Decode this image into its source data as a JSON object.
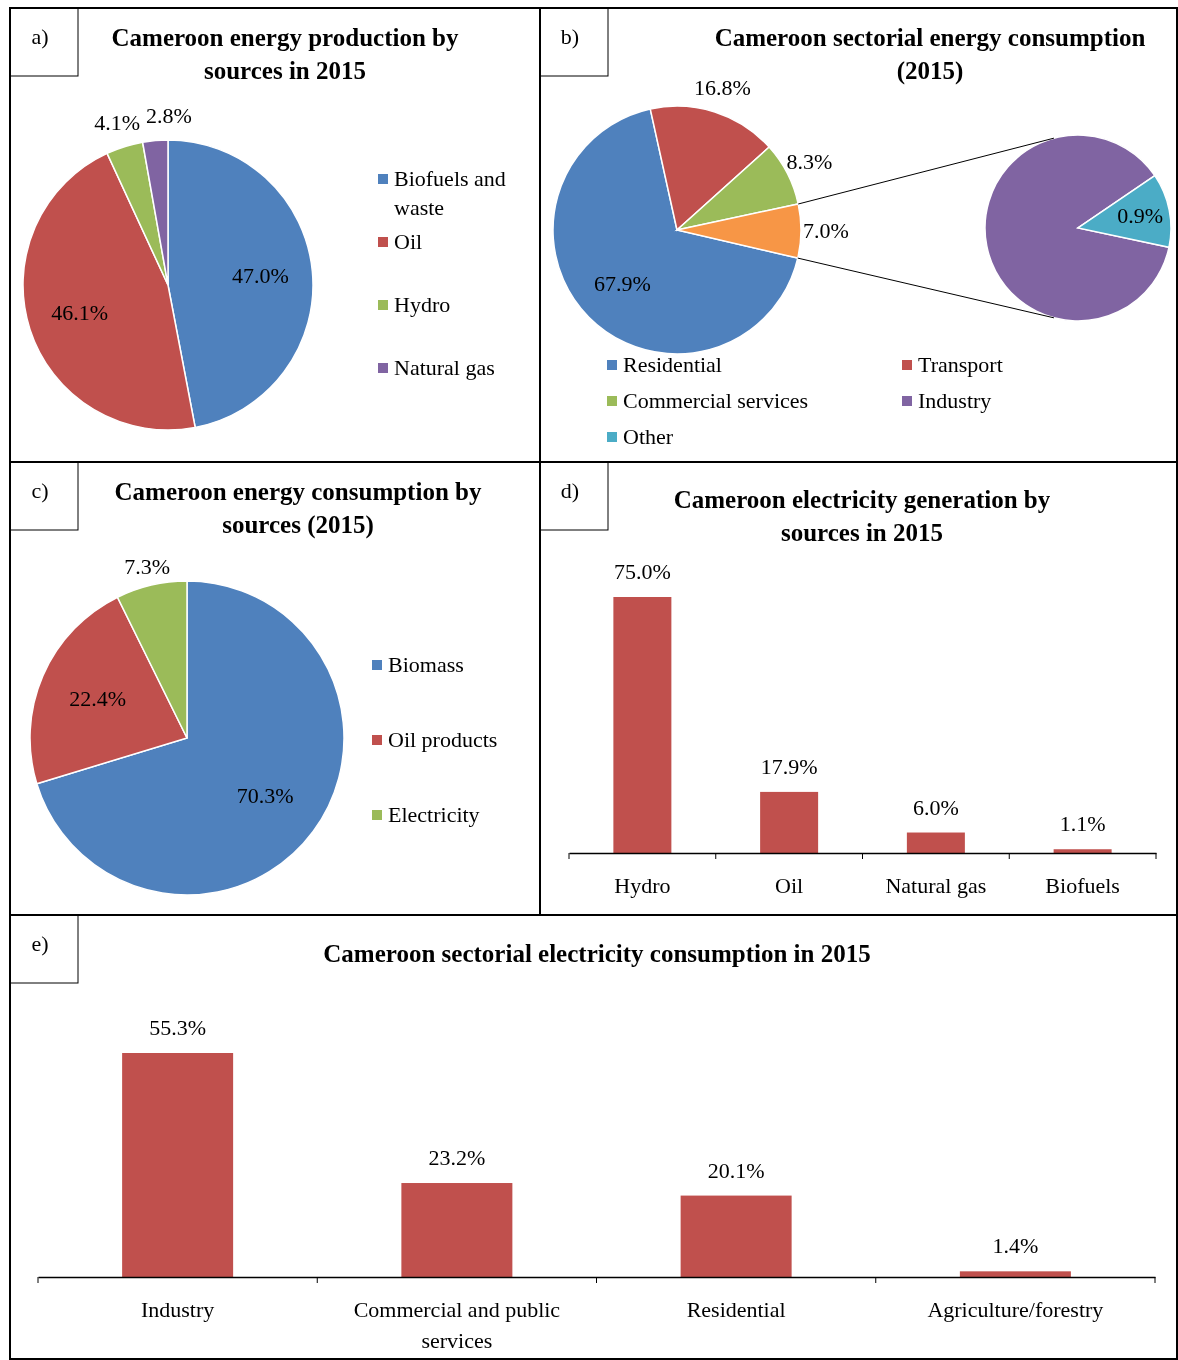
{
  "chart_data": [
    {
      "type": "pie",
      "title": "Cameroon energy production by sources in 2015",
      "annotations": [
        "a)"
      ],
      "categories": [
        "Biofuels and waste",
        "Oil",
        "Hydro",
        "Natural gas"
      ],
      "values": [
        47.0,
        46.1,
        4.1,
        2.8
      ],
      "colors": [
        "#4f81bd",
        "#c0504d",
        "#9bbb59",
        "#8064a2"
      ],
      "value_labels": [
        "47.0%",
        "46.1%",
        "4.1%",
        "2.8%"
      ],
      "legend": "right"
    },
    {
      "type": "pie",
      "title": "Cameroon sectorial energy consumption (2015)",
      "annotations": [
        "b)"
      ],
      "categories": [
        "Residential",
        "Transport",
        "Commercial services",
        null
      ],
      "values": [
        67.9,
        16.8,
        8.3,
        7.0
      ],
      "colors": [
        "#4f81bd",
        "#c0504d",
        "#9bbb59",
        "#f79646"
      ],
      "value_labels": [
        "67.9%",
        "16.8%",
        "8.3%",
        "7.0%"
      ],
      "legend": "bottom"
    },
    {
      "type": "pie",
      "categories": [
        "Industry",
        "Other"
      ],
      "values": [
        6.1,
        0.9
      ],
      "colors": [
        "#8064a2",
        "#4bacc6"
      ],
      "value_labels": [
        null,
        "0.9%"
      ],
      "legend": "bottom"
    },
    {
      "type": "pie",
      "title": "Cameroon energy consumption by sources (2015)",
      "annotations": [
        "c)"
      ],
      "categories": [
        "Biomass",
        "Oil products",
        "Electricity"
      ],
      "values": [
        70.3,
        22.4,
        7.3
      ],
      "colors": [
        "#4f81bd",
        "#c0504d",
        "#9bbb59"
      ],
      "value_labels": [
        "70.3%",
        "22.4%",
        "7.3%"
      ],
      "legend": "right"
    },
    {
      "type": "bar",
      "title": "Cameroon electricity generation by sources in 2015",
      "annotations": [
        "d)"
      ],
      "categories": [
        "Hydro",
        "Oil",
        "Natural gas",
        "Biofuels"
      ],
      "values": [
        75.0,
        17.9,
        6.0,
        1.1
      ],
      "color": "#c0504d",
      "value_labels": [
        "75.0%",
        "17.9%",
        "6.0%",
        "1.1%"
      ]
    },
    {
      "type": "bar",
      "title": "Cameroon sectorial electricity consumption in 2015",
      "annotations": [
        "e)"
      ],
      "categories": [
        "Industry",
        "Commercial and public services",
        "Residential",
        "Agriculture/forestry"
      ],
      "values": [
        55.3,
        23.2,
        20.1,
        1.4
      ],
      "color": "#c0504d",
      "value_labels": [
        "55.3%",
        "23.2%",
        "20.1%",
        "1.4%"
      ]
    }
  ]
}
